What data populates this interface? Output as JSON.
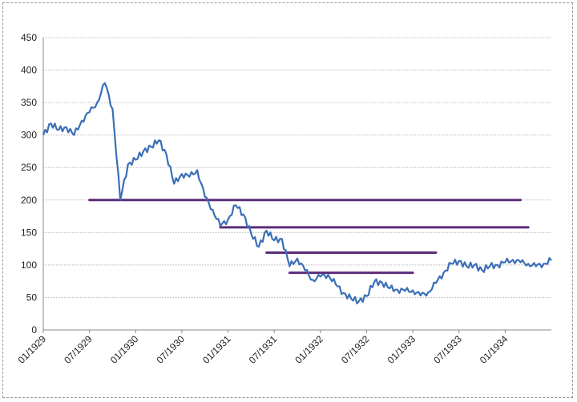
{
  "chart_data": {
    "type": "line",
    "title": "",
    "xlabel": "",
    "ylabel": "",
    "ylim": [
      0,
      450
    ],
    "yticks": [
      0,
      50,
      100,
      150,
      200,
      250,
      300,
      350,
      400,
      450
    ],
    "x_tick_labels": [
      "01/1929",
      "07/1929",
      "01/1930",
      "07/1930",
      "01/1931",
      "07/1931",
      "01/1932",
      "07/1932",
      "01/1933",
      "07/1933",
      "01/1934"
    ],
    "xlim": [
      "1929-01",
      "1934-07"
    ],
    "grid": true,
    "legend": "none",
    "series": [
      {
        "color": "#3a6fb7",
        "points": [
          [
            "1929-01",
            300
          ],
          [
            "1929-02",
            318
          ],
          [
            "1929-03",
            308
          ],
          [
            "1929-04",
            312
          ],
          [
            "1929-05",
            300
          ],
          [
            "1929-06",
            322
          ],
          [
            "1929-07",
            335
          ],
          [
            "1929-08",
            350
          ],
          [
            "1929-09",
            380
          ],
          [
            "1929-10",
            340
          ],
          [
            "1929-11",
            200
          ],
          [
            "1929-12",
            255
          ],
          [
            "1930-01",
            262
          ],
          [
            "1930-02",
            275
          ],
          [
            "1930-03",
            282
          ],
          [
            "1930-04",
            292
          ],
          [
            "1930-05",
            270
          ],
          [
            "1930-06",
            225
          ],
          [
            "1930-07",
            240
          ],
          [
            "1930-08",
            236
          ],
          [
            "1930-09",
            246
          ],
          [
            "1930-10",
            205
          ],
          [
            "1930-11",
            185
          ],
          [
            "1930-12",
            160
          ],
          [
            "1931-01",
            170
          ],
          [
            "1931-02",
            192
          ],
          [
            "1931-03",
            178
          ],
          [
            "1931-04",
            148
          ],
          [
            "1931-05",
            128
          ],
          [
            "1931-06",
            153
          ],
          [
            "1931-07",
            138
          ],
          [
            "1931-08",
            140
          ],
          [
            "1931-09",
            98
          ],
          [
            "1931-10",
            110
          ],
          [
            "1931-11",
            92
          ],
          [
            "1931-12",
            77
          ],
          [
            "1932-01",
            82
          ],
          [
            "1932-02",
            85
          ],
          [
            "1932-03",
            70
          ],
          [
            "1932-04",
            57
          ],
          [
            "1932-05",
            48
          ],
          [
            "1932-06",
            44
          ],
          [
            "1932-07",
            52
          ],
          [
            "1932-08",
            74
          ],
          [
            "1932-09",
            73
          ],
          [
            "1932-10",
            64
          ],
          [
            "1932-11",
            62
          ],
          [
            "1932-12",
            60
          ],
          [
            "1933-01",
            61
          ],
          [
            "1933-02",
            53
          ],
          [
            "1933-03",
            58
          ],
          [
            "1933-04",
            72
          ],
          [
            "1933-05",
            88
          ],
          [
            "1933-06",
            102
          ],
          [
            "1933-07",
            106
          ],
          [
            "1933-08",
            98
          ],
          [
            "1933-09",
            100
          ],
          [
            "1933-10",
            92
          ],
          [
            "1933-11",
            98
          ],
          [
            "1933-12",
            100
          ],
          [
            "1934-01",
            104
          ],
          [
            "1934-02",
            108
          ],
          [
            "1934-03",
            104
          ],
          [
            "1934-04",
            102
          ],
          [
            "1934-05",
            98
          ],
          [
            "1934-06",
            102
          ],
          [
            "1934-07",
            107
          ]
        ]
      }
    ],
    "reference_lines": [
      {
        "y": 200,
        "x_start": "1929-07",
        "x_end": "1934-03",
        "color": "#5b2d7a"
      },
      {
        "y": 158,
        "x_start": "1930-12",
        "x_end": "1934-04",
        "color": "#5b2d7a"
      },
      {
        "y": 119,
        "x_start": "1931-06",
        "x_end": "1933-04",
        "color": "#5b2d7a"
      },
      {
        "y": 88,
        "x_start": "1931-09",
        "x_end": "1933-01",
        "color": "#5b2d7a"
      }
    ]
  }
}
